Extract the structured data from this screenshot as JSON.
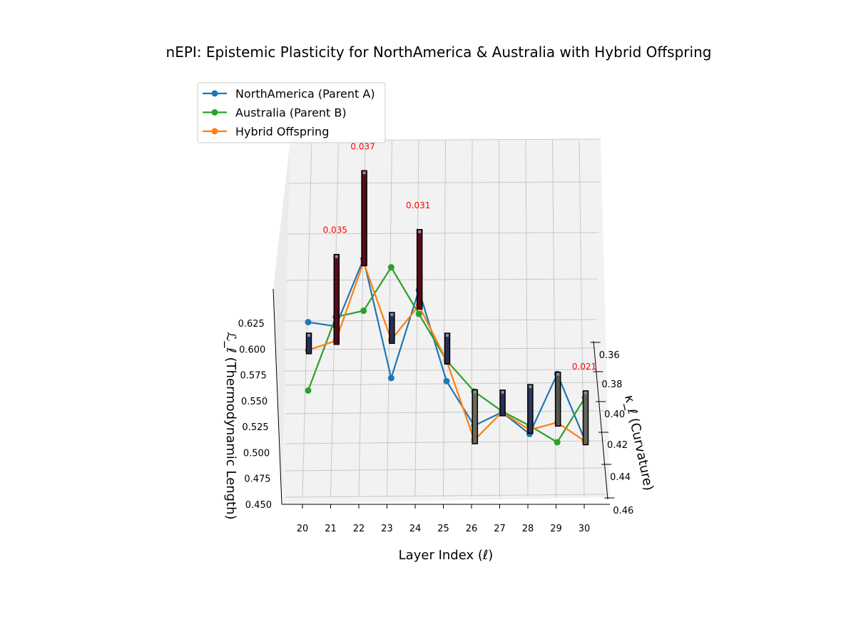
{
  "chart_data": {
    "type": "line",
    "projection": "3d",
    "title": "nEPI: Epistemic Plasticity for NorthAmerica & Australia with Hybrid Offspring",
    "xlabel": "Layer Index (ℓ)",
    "ylabel": "κ_ℓ (Curvature)",
    "zlabel": "ℒ_ℓ (Thermodynamic Length)",
    "x": [
      20,
      21,
      22,
      23,
      24,
      25,
      26,
      27,
      28,
      29,
      30
    ],
    "xticks": [
      "20",
      "21",
      "22",
      "23",
      "24",
      "25",
      "26",
      "27",
      "28",
      "29",
      "30"
    ],
    "yticks": [
      "0.36",
      "0.38",
      "0.40",
      "0.42",
      "0.44",
      "0.46"
    ],
    "zticks": [
      "0.450",
      "0.475",
      "0.500",
      "0.525",
      "0.550",
      "0.575",
      "0.600",
      "0.625"
    ],
    "zlim": [
      0.45,
      0.64
    ],
    "grid": true,
    "legend_position": "upper-left",
    "series": [
      {
        "name": "NorthAmerica (Parent A)",
        "color": "#1f77b4",
        "values": [
          0.626,
          0.622,
          0.687,
          0.572,
          0.657,
          0.569,
          0.526,
          0.539,
          0.518,
          0.576,
          0.512
        ]
      },
      {
        "name": "Australia (Parent B)",
        "color": "#2ca02c",
        "values": [
          0.56,
          0.631,
          0.637,
          0.679,
          0.634,
          0.589,
          0.559,
          0.54,
          0.526,
          0.51,
          0.553
        ]
      },
      {
        "name": "Hybrid Offspring",
        "color": "#ff7f0e",
        "values": [
          0.599,
          0.608,
          0.684,
          0.609,
          0.642,
          0.589,
          0.512,
          0.539,
          0.522,
          0.529,
          0.511
        ]
      }
    ],
    "bars": {
      "values": [
        0.008,
        0.035,
        0.037,
        0.012,
        0.031,
        0.012,
        0.021,
        0.01,
        0.019,
        0.021,
        0.021
      ],
      "colors": [
        "#26305a",
        "#5a0a1a",
        "#5a0a1a",
        "#26305a",
        "#5a0a1a",
        "#26305a",
        "#6a6a5c",
        "#26305a",
        "#2e3660",
        "#55564e",
        "#66665a"
      ],
      "labels": [
        "",
        "0.035",
        "0.037",
        "",
        "0.031",
        "",
        "",
        "",
        "",
        "",
        "0.021"
      ],
      "label_color": "#ff0000"
    }
  }
}
